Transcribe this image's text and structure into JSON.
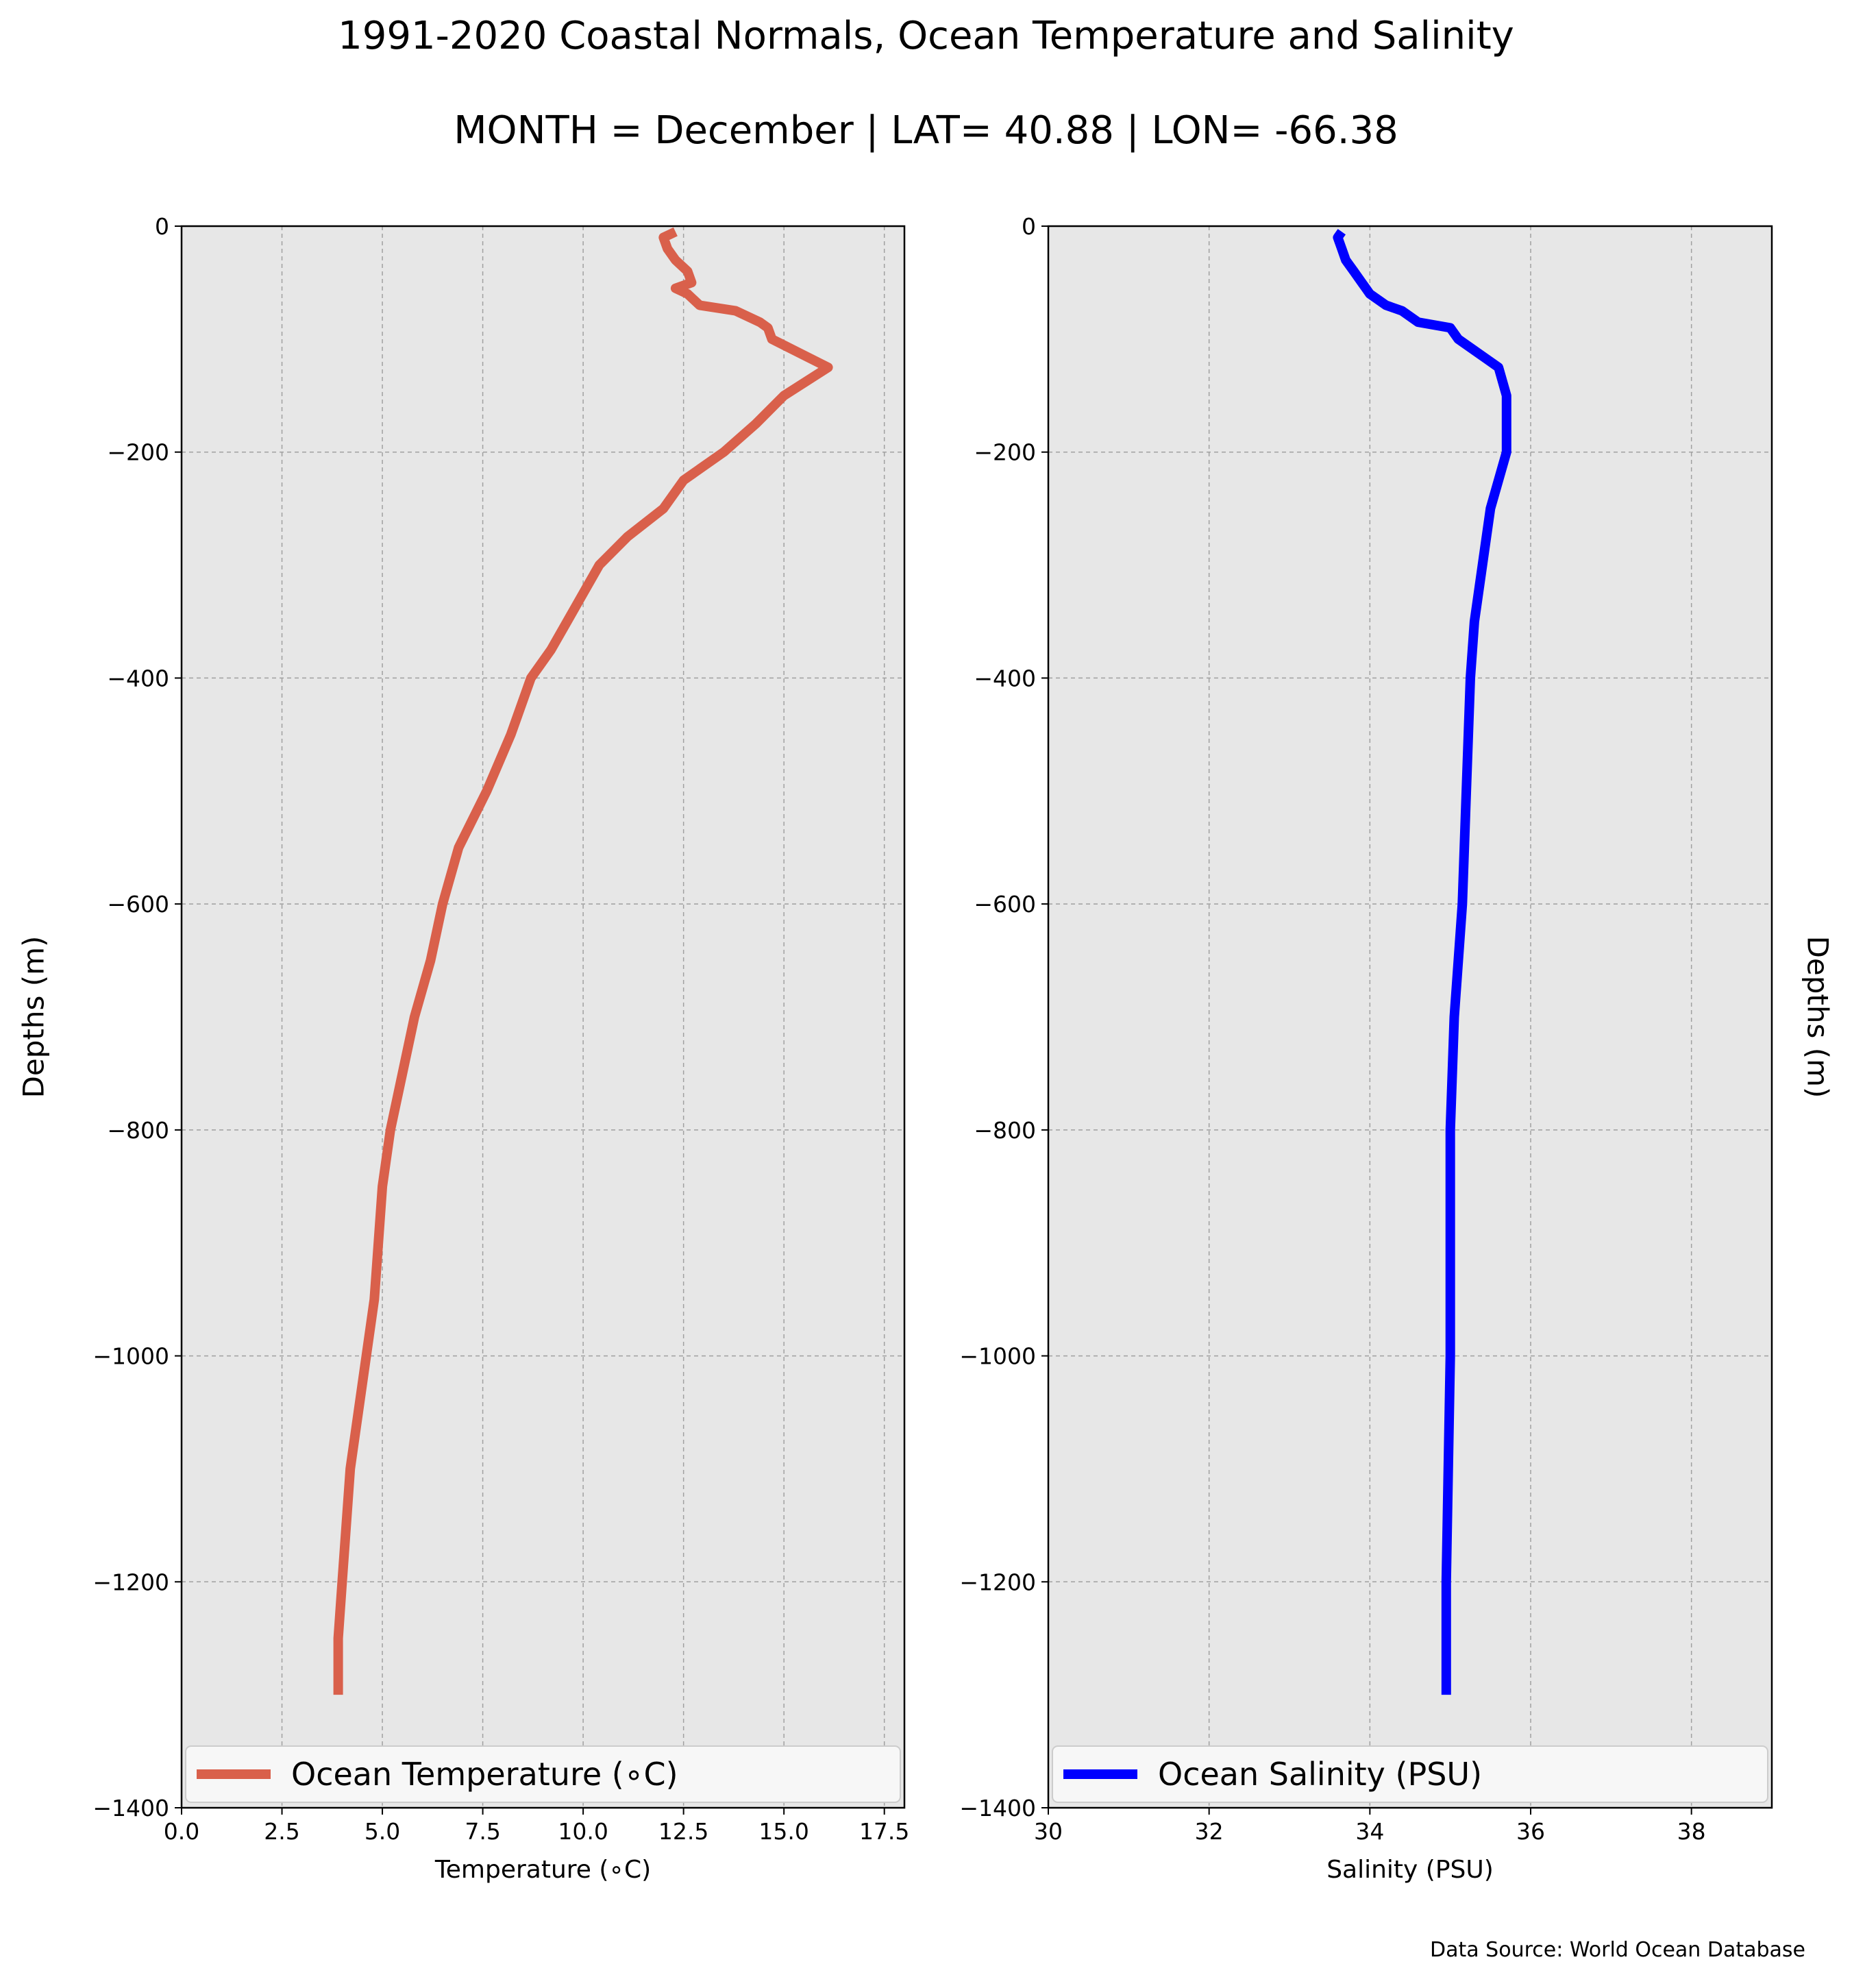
{
  "title": "1991-2020 Coastal Normals, Ocean Temperature and Salinity",
  "subtitle": "MONTH = December | LAT= 40.88 | LON= -66.38",
  "source": "Data Source: World Ocean Database",
  "chart_data": [
    {
      "type": "line",
      "xlabel": "Temperature (∘C)",
      "ylabel": "Depths (m)",
      "xlim": [
        0,
        18
      ],
      "ylim": [
        -1400,
        0
      ],
      "xticks": [
        0,
        2.5,
        5,
        7.5,
        10,
        12.5,
        15,
        17.5
      ],
      "xtick_labels": [
        "0.0",
        "2.5",
        "5.0",
        "7.5",
        "10.0",
        "12.5",
        "15.0",
        "17.5"
      ],
      "yticks": [
        0,
        -200,
        -400,
        -600,
        -800,
        -1000,
        -1200,
        -1400
      ],
      "ytick_labels": [
        "0",
        "−200",
        "−400",
        "−600",
        "−800",
        "−1000",
        "−1200",
        "−1400"
      ],
      "grid": true,
      "legend": "bottom",
      "color": "#d9604b",
      "series": [
        {
          "name": "Ocean Temperature (∘C)",
          "x": [
            12.3,
            12.0,
            12.1,
            12.3,
            12.6,
            12.7,
            12.3,
            12.6,
            12.9,
            13.8,
            14.4,
            14.6,
            14.7,
            16.1,
            15.0,
            14.3,
            13.5,
            12.5,
            12.0,
            11.1,
            10.4,
            9.6,
            9.2,
            8.7,
            8.2,
            7.6,
            6.9,
            6.5,
            6.2,
            5.8,
            5.2,
            5.0,
            4.9,
            4.8,
            4.6,
            4.4,
            4.2,
            4.0,
            3.9,
            3.9
          ],
          "y": [
            -5,
            -10,
            -20,
            -30,
            -40,
            -50,
            -55,
            -60,
            -70,
            -75,
            -85,
            -90,
            -100,
            -125,
            -150,
            -175,
            -200,
            -225,
            -250,
            -275,
            -300,
            -350,
            -375,
            -400,
            -450,
            -500,
            -550,
            -600,
            -650,
            -700,
            -800,
            -850,
            -900,
            -950,
            -1000,
            -1050,
            -1100,
            -1200,
            -1250,
            -1300
          ]
        }
      ]
    },
    {
      "type": "line",
      "xlabel": "Salinity (PSU)",
      "ylabel": "Depths (m)",
      "xlim": [
        30,
        39
      ],
      "ylim": [
        -1400,
        0
      ],
      "xticks": [
        30,
        32,
        34,
        36,
        38
      ],
      "xtick_labels": [
        "30",
        "32",
        "34",
        "36",
        "38"
      ],
      "yticks": [
        0,
        -200,
        -400,
        -600,
        -800,
        -1000,
        -1200,
        -1400
      ],
      "ytick_labels": [
        "0",
        "−200",
        "−400",
        "−600",
        "−800",
        "−1000",
        "−1200",
        "−1400"
      ],
      "grid": true,
      "legend": "bottom",
      "color": "#0000ff",
      "series": [
        {
          "name": "Ocean Salinity (PSU)",
          "x": [
            33.65,
            33.6,
            33.65,
            33.7,
            33.8,
            33.9,
            33.95,
            34.0,
            34.2,
            34.4,
            34.6,
            35.0,
            35.1,
            35.6,
            35.7,
            35.7,
            35.5,
            35.4,
            35.3,
            35.25,
            35.2,
            35.15,
            35.1,
            35.05,
            35.0,
            35.0,
            35.0,
            34.95,
            34.95
          ],
          "y": [
            -5,
            -10,
            -20,
            -30,
            -40,
            -50,
            -55,
            -60,
            -70,
            -75,
            -85,
            -90,
            -100,
            -125,
            -150,
            -200,
            -250,
            -300,
            -350,
            -400,
            -500,
            -600,
            -650,
            -700,
            -800,
            -900,
            -1000,
            -1200,
            -1300
          ]
        }
      ]
    }
  ]
}
